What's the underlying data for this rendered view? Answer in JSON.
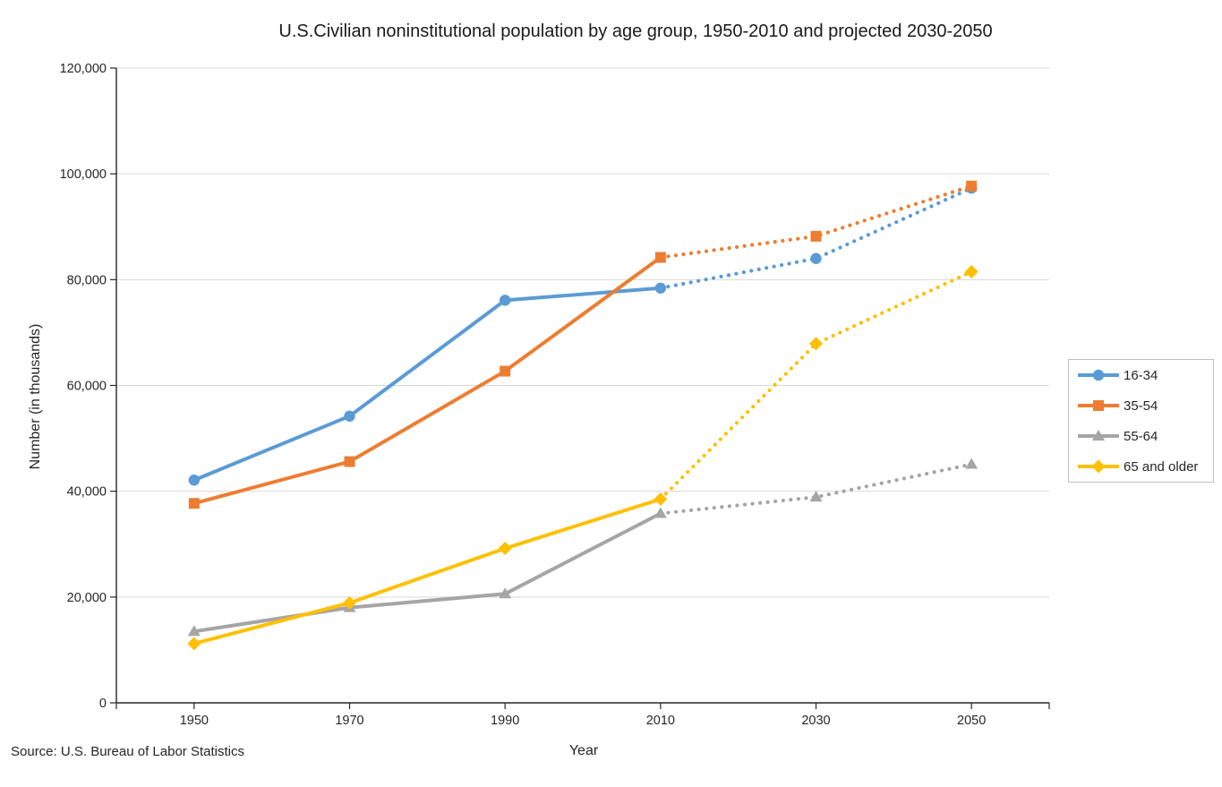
{
  "source_note": "Source: U.S. Bureau of Labor Statistics",
  "chart_data": {
    "type": "line",
    "title": "U.S.Civilian noninstitutional population by age group, 1950-2010 and projected 2030-2050",
    "xlabel": "Year",
    "ylabel": "Number (in thousands)",
    "categories": [
      "1950",
      "1970",
      "1990",
      "2010",
      "2030",
      "2050"
    ],
    "ylim": [
      0,
      120000
    ],
    "ytick_interval": 20000,
    "ytick_labels": [
      "0",
      "20,000",
      "40,000",
      "60,000",
      "80,000",
      "100,000",
      "120,000"
    ],
    "grid": true,
    "legend_position": "right",
    "style_note": "solid lines 1950-2010 observed, dotted lines 2010-2050 projected",
    "axis_color": "#262626",
    "gridline_color": "#d9d9d9",
    "legend_border_color": "#bfbfbf",
    "series": [
      {
        "name": "16-34",
        "color": "#5B9BD5",
        "marker": "circle",
        "values": [
          42100,
          54200,
          76100,
          78400,
          84000,
          97300
        ],
        "solid_through_index": 3
      },
      {
        "name": "35-54",
        "color": "#ED7D31",
        "marker": "square",
        "values": [
          37700,
          45600,
          62700,
          84200,
          88200,
          97700
        ],
        "solid_through_index": 3
      },
      {
        "name": "55-64",
        "color": "#A5A5A5",
        "marker": "triangle",
        "values": [
          13500,
          18000,
          20600,
          35800,
          38900,
          45100
        ],
        "solid_through_index": 3
      },
      {
        "name": "65 and older",
        "color": "#FFC000",
        "marker": "diamond",
        "values": [
          11200,
          18900,
          29200,
          38500,
          67900,
          81500
        ],
        "solid_through_index": 3
      }
    ]
  }
}
